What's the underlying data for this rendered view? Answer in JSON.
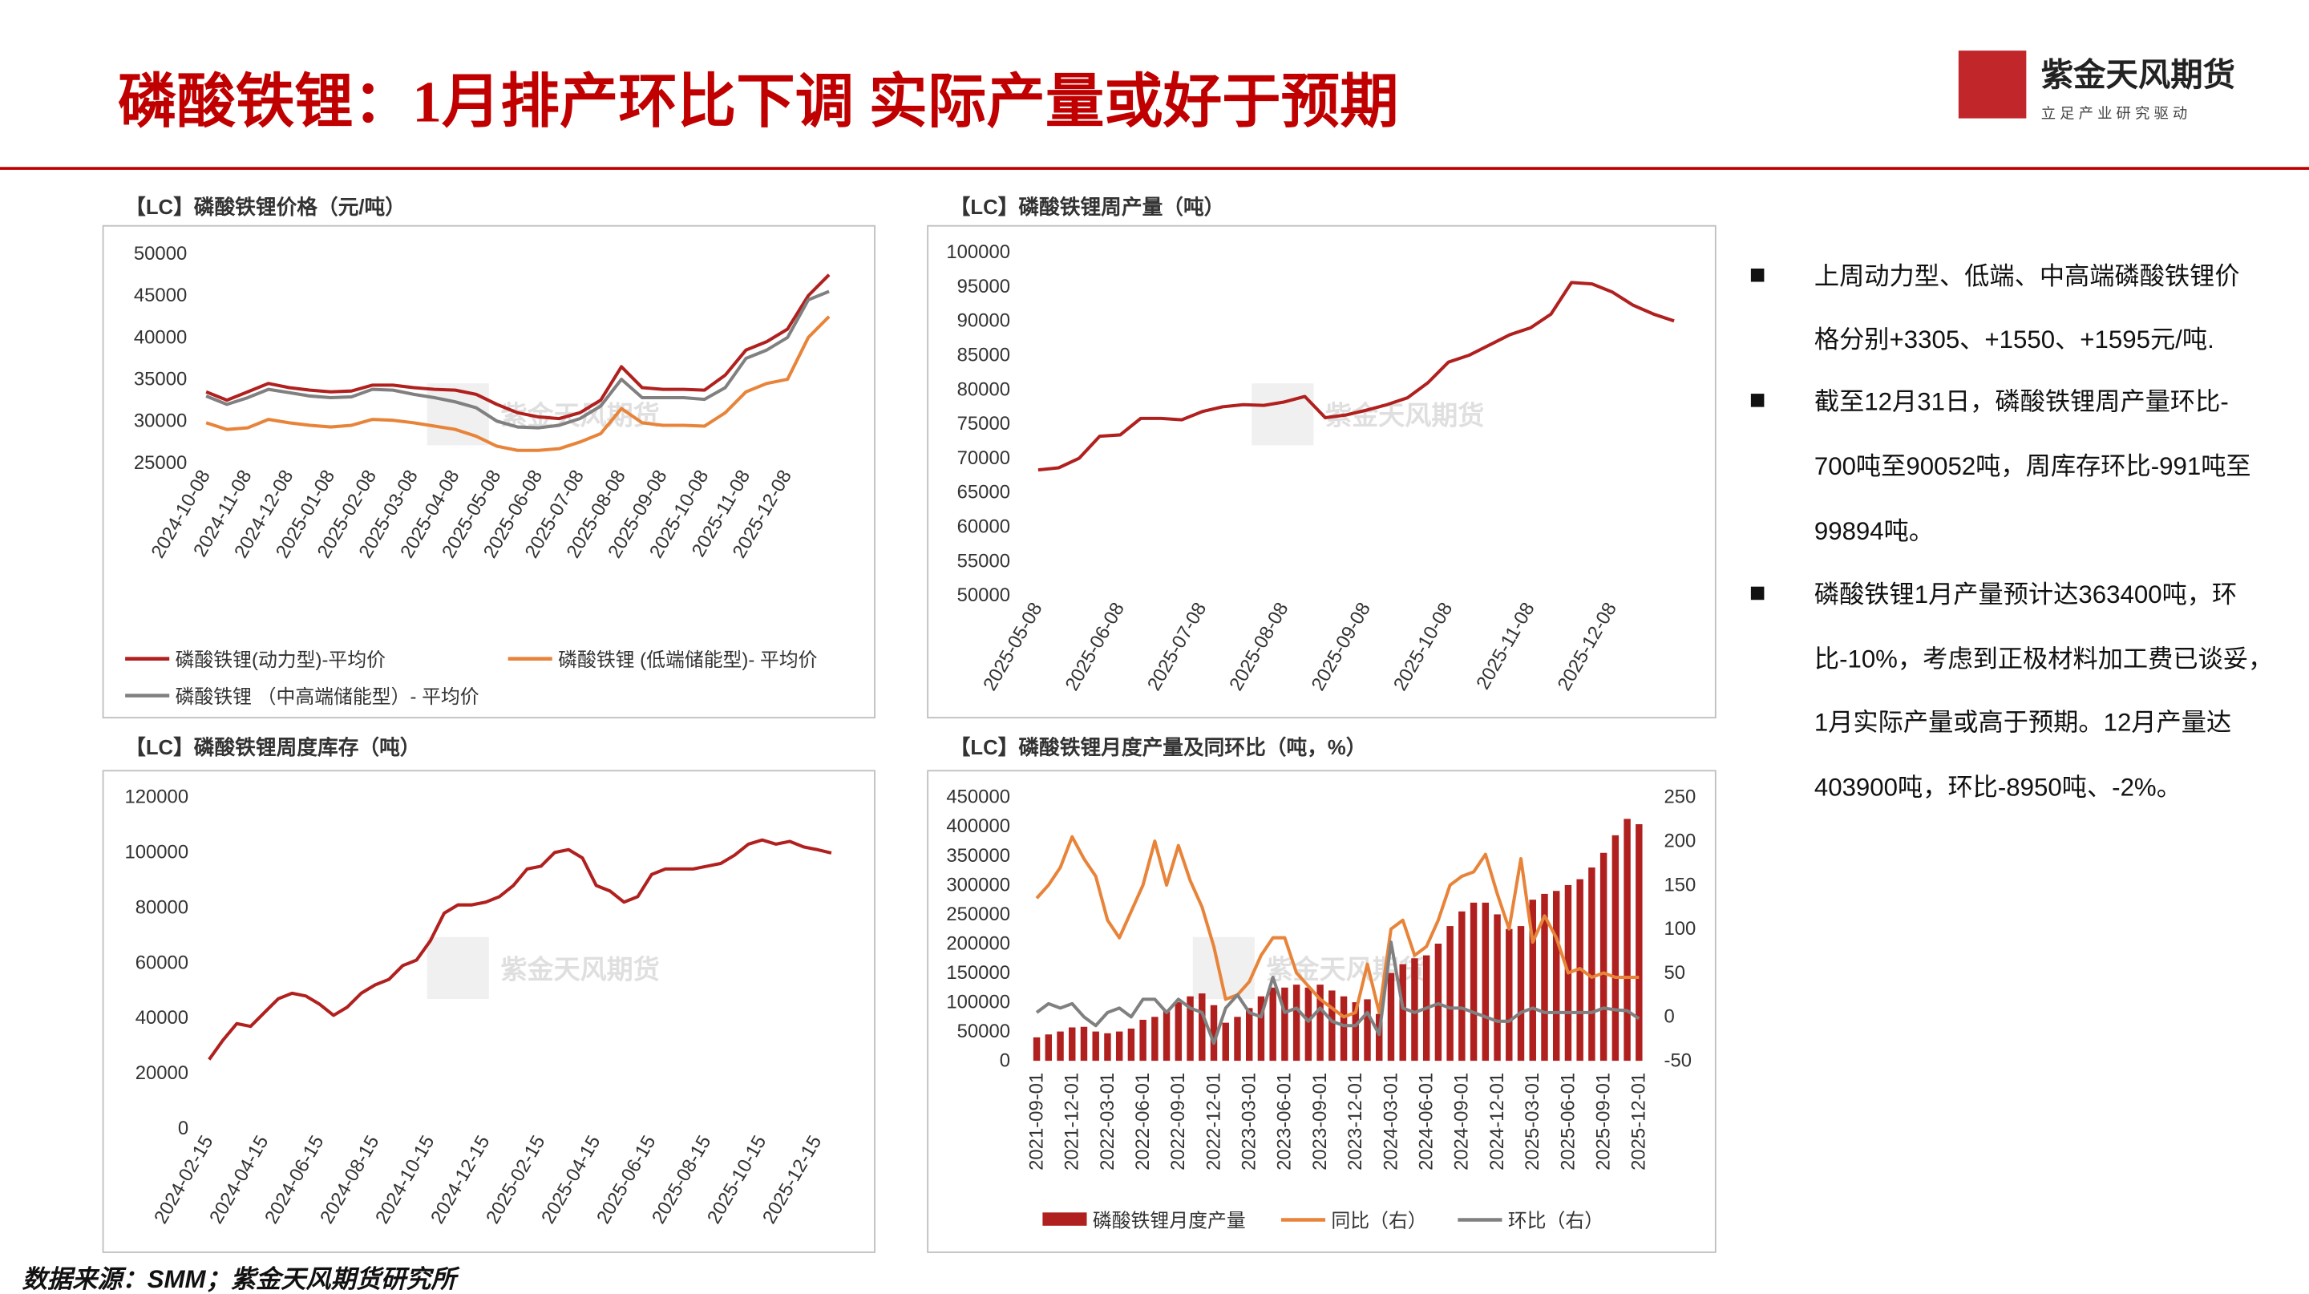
{
  "header": {
    "title": "磷酸铁锂：1月排产环比下调 实际产量或好于预期",
    "logo_name": "紫金天风期货",
    "logo_slogan": "立 足 产 业   研 究 驱 动",
    "watermark": "紫金天风期货"
  },
  "bullets": [
    [
      "上周动力型、低端、中高端磷酸铁锂价",
      "格分别+3305、+1550、+1595元/吨."
    ],
    [
      "截至12月31日，磷酸铁锂周产量环比-",
      "700吨至90052吨，周库存环比-991吨至",
      "99894吨。"
    ],
    [
      "磷酸铁锂1月产量预计达363400吨，环",
      "比-10%，考虑到正极材料加工费已谈妥，",
      "1月实际产量或高于预期。12月产量达",
      "403900吨，环比-8950吨、-2%。"
    ]
  ],
  "source": "数据来源：SMM；紫金天风期货研究所",
  "chart_data": [
    {
      "type": "line",
      "title": "【LC】磷酸铁锂价格（元/吨）",
      "categories": [
        "2024-10-08",
        null,
        "2024-11-08",
        null,
        "2024-12-08",
        null,
        "2025-01-08",
        null,
        "2025-02-08",
        null,
        "2025-03-08",
        null,
        "2025-04-08",
        null,
        "2025-05-08",
        null,
        "2025-06-08",
        null,
        "2025-07-08",
        null,
        "2025-08-08",
        null,
        "2025-09-08",
        null,
        "2025-10-08",
        null,
        "2025-11-08",
        null,
        "2025-12-08",
        null,
        null
      ],
      "ylim": [
        25000,
        50000
      ],
      "yticks": [
        25000,
        30000,
        35000,
        40000,
        45000,
        50000
      ],
      "grid": false,
      "series": [
        {
          "name": "磷酸铁锂(动力型)-平均价",
          "color": "#b0201e",
          "values": [
            33500,
            32500,
            33500,
            34500,
            34000,
            33700,
            33500,
            33600,
            34300,
            34300,
            34000,
            33800,
            33700,
            33200,
            32000,
            31000,
            30500,
            30300,
            31000,
            32500,
            36500,
            34000,
            33800,
            33800,
            33700,
            35500,
            38500,
            39500,
            41000,
            45000,
            47500
          ]
        },
        {
          "name": "磷酸铁锂 (低端储能型)- 平均价",
          "color": "#e8843a",
          "values": [
            29800,
            29000,
            29200,
            30200,
            29800,
            29500,
            29300,
            29500,
            30200,
            30100,
            29800,
            29400,
            29000,
            28200,
            27000,
            26500,
            26500,
            26700,
            27500,
            28500,
            31500,
            29800,
            29500,
            29500,
            29400,
            31000,
            33500,
            34500,
            35000,
            40000,
            42500
          ]
        },
        {
          "name": "磷酸铁锂 （中高端储能型）- 平均价",
          "color": "#808080",
          "values": [
            33000,
            32000,
            32800,
            33800,
            33400,
            33000,
            32800,
            32900,
            33800,
            33700,
            33200,
            32800,
            32300,
            31600,
            30000,
            29300,
            29200,
            29500,
            30300,
            31800,
            35000,
            32800,
            32800,
            32800,
            32600,
            34000,
            37500,
            38500,
            40000,
            44500,
            45500
          ]
        }
      ]
    },
    {
      "type": "line",
      "title": "【LC】磷酸铁锂周产量（吨）",
      "categories": [
        "2025-05-08",
        null,
        null,
        null,
        "2025-06-08",
        null,
        null,
        null,
        "2025-07-08",
        null,
        null,
        null,
        "2025-08-08",
        null,
        null,
        null,
        "2025-09-08",
        null,
        null,
        null,
        "2025-10-08",
        null,
        null,
        null,
        "2025-11-08",
        null,
        null,
        null,
        "2025-12-08",
        null,
        null,
        null
      ],
      "ylim": [
        50000,
        100000
      ],
      "yticks": [
        50000,
        55000,
        60000,
        65000,
        70000,
        75000,
        80000,
        85000,
        90000,
        95000,
        100000
      ],
      "grid": false,
      "series": [
        {
          "name": "磷酸铁锂周产量",
          "color": "#b0201e",
          "values": [
            68300,
            68600,
            70000,
            73200,
            73400,
            75800,
            75800,
            75600,
            76800,
            77500,
            77800,
            77700,
            78200,
            79000,
            75900,
            76300,
            77000,
            77800,
            78800,
            81000,
            84000,
            85000,
            86500,
            88000,
            89000,
            91000,
            95600,
            95400,
            94200,
            92300,
            91000,
            90000
          ]
        }
      ]
    },
    {
      "type": "line",
      "title": "【LC】磷酸铁锂周度库存（吨）",
      "categories": [
        "2024-02-15",
        null,
        null,
        null,
        "2024-04-15",
        null,
        null,
        null,
        "2024-06-15",
        null,
        null,
        null,
        "2024-08-15",
        null,
        null,
        null,
        "2024-10-15",
        null,
        null,
        null,
        "2024-12-15",
        null,
        null,
        null,
        "2025-02-15",
        null,
        null,
        null,
        "2025-04-15",
        null,
        null,
        null,
        "2025-06-15",
        null,
        null,
        null,
        "2025-08-15",
        null,
        null,
        null,
        "2025-10-15",
        null,
        null,
        null,
        "2025-12-15",
        null
      ],
      "ylim": [
        0,
        120000
      ],
      "yticks": [
        0,
        20000,
        40000,
        60000,
        80000,
        100000,
        120000
      ],
      "grid": false,
      "series": [
        {
          "name": "磷酸铁锂周度库存",
          "color": "#b0201e",
          "values": [
            25000,
            32000,
            38000,
            37000,
            42000,
            47000,
            49000,
            48000,
            45000,
            41000,
            44000,
            49000,
            52000,
            54000,
            59000,
            61000,
            68000,
            78000,
            81000,
            81000,
            82000,
            84000,
            88000,
            94000,
            95000,
            100000,
            101000,
            98000,
            88000,
            86000,
            82000,
            84000,
            92000,
            94000,
            94000,
            94000,
            95000,
            96000,
            99000,
            103000,
            104500,
            103000,
            104000,
            102000,
            101000,
            99800
          ]
        }
      ]
    },
    {
      "type": "bar",
      "title": "【LC】磷酸铁锂月度产量及同环比（吨，%）",
      "categories": [
        "2021-09-01",
        null,
        null,
        "2021-12-01",
        null,
        null,
        "2022-03-01",
        null,
        null,
        "2022-06-01",
        null,
        null,
        "2022-09-01",
        null,
        null,
        "2022-12-01",
        null,
        null,
        "2023-03-01",
        null,
        null,
        "2023-06-01",
        null,
        null,
        "2023-09-01",
        null,
        null,
        "2023-12-01",
        null,
        null,
        "2024-03-01",
        null,
        null,
        "2024-06-01",
        null,
        null,
        "2024-09-01",
        null,
        null,
        "2024-12-01",
        null,
        null,
        "2025-03-01",
        null,
        null,
        "2025-06-01",
        null,
        null,
        "2025-09-01",
        null,
        null,
        "2025-12-01"
      ],
      "ylim": [
        0,
        450000
      ],
      "yticks": [
        0,
        50000,
        100000,
        150000,
        200000,
        250000,
        300000,
        350000,
        400000,
        450000
      ],
      "y2lim": [
        -50,
        250
      ],
      "y2ticks": [
        -50,
        0,
        50,
        100,
        150,
        200,
        250
      ],
      "grid": false,
      "series": [
        {
          "name": "磷酸铁锂月度产量",
          "type": "bar",
          "color": "#b0201e",
          "values": [
            40000,
            45000,
            50000,
            57000,
            58000,
            50000,
            47000,
            50000,
            55000,
            70000,
            75000,
            85000,
            100000,
            110000,
            115000,
            95000,
            65000,
            75000,
            90000,
            110000,
            125000,
            125000,
            130000,
            125000,
            130000,
            120000,
            110000,
            100000,
            105000,
            80000,
            150000,
            165000,
            175000,
            180000,
            200000,
            230000,
            255000,
            270000,
            270000,
            250000,
            225000,
            230000,
            275000,
            285000,
            290000,
            300000,
            310000,
            330000,
            355000,
            385000,
            413000,
            403900
          ]
        },
        {
          "name": "同比（右）",
          "type": "line",
          "axis": "y2",
          "color": "#e8843a",
          "values": [
            135,
            150,
            170,
            205,
            180,
            160,
            110,
            90,
            120,
            150,
            200,
            150,
            195,
            155,
            125,
            80,
            20,
            25,
            40,
            70,
            90,
            90,
            50,
            35,
            20,
            10,
            0,
            5,
            60,
            5,
            100,
            110,
            70,
            80,
            110,
            150,
            160,
            165,
            185,
            140,
            100,
            180,
            85,
            115,
            90,
            50,
            55,
            45,
            50,
            45,
            45,
            45
          ]
        },
        {
          "name": "环比（右）",
          "type": "line",
          "axis": "y2",
          "color": "#808080",
          "values": [
            5,
            15,
            10,
            15,
            0,
            -10,
            5,
            10,
            0,
            20,
            20,
            5,
            20,
            10,
            5,
            -30,
            10,
            25,
            5,
            0,
            45,
            5,
            10,
            -5,
            10,
            -5,
            -10,
            -10,
            5,
            -20,
            85,
            10,
            5,
            10,
            15,
            10,
            10,
            5,
            0,
            -5,
            -5,
            5,
            10,
            5,
            5,
            5,
            5,
            5,
            10,
            8,
            7,
            -2
          ]
        }
      ]
    }
  ]
}
